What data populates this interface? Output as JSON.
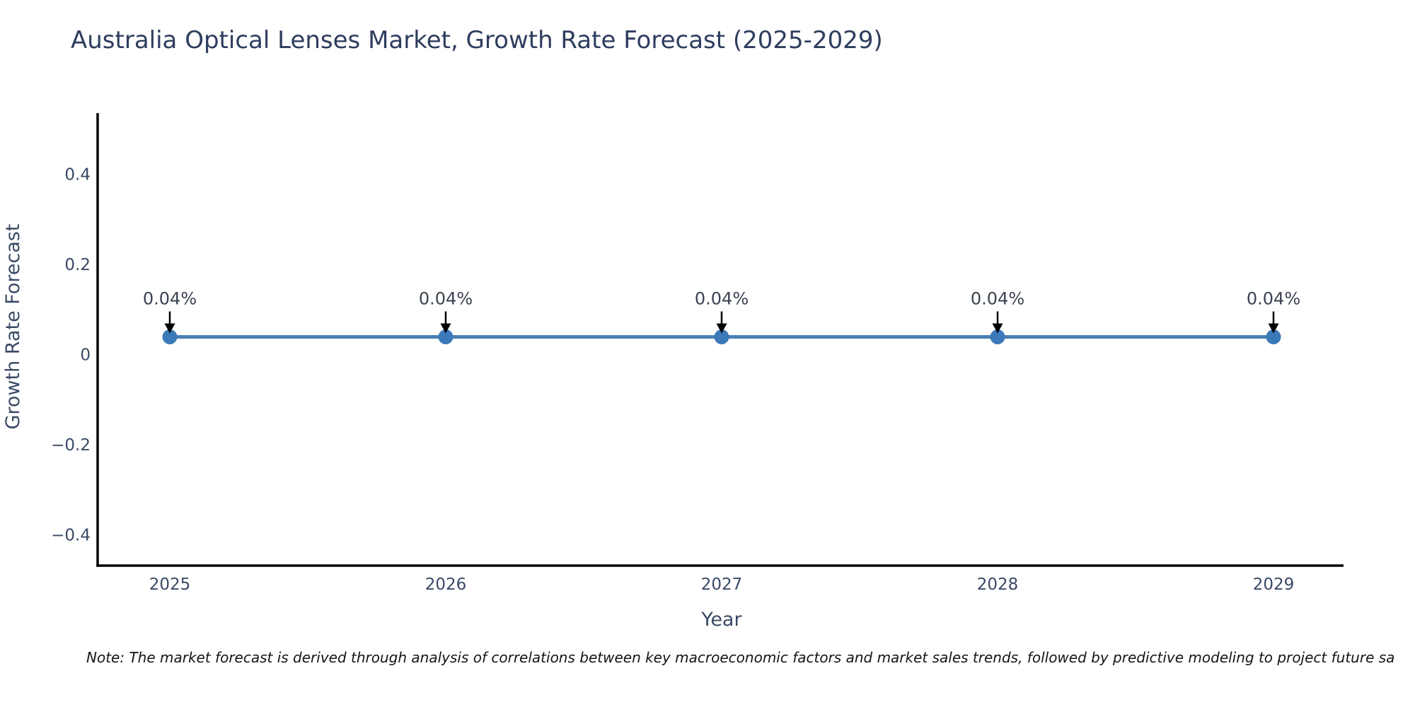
{
  "note": "Note: The market forecast is derived through analysis of correlations between key macroeconomic factors and market sales trends, followed by predictive modeling to project future sa",
  "chart_data": {
    "type": "line",
    "title": "Australia Optical Lenses Market, Growth Rate Forecast (2025-2029)",
    "xlabel": "Year",
    "ylabel": "Growth Rate Forecast",
    "categories": [
      "2025",
      "2026",
      "2027",
      "2028",
      "2029"
    ],
    "values": [
      0.04,
      0.04,
      0.04,
      0.04,
      0.04
    ],
    "point_labels": [
      "0.04%",
      "0.04%",
      "0.04%",
      "0.04%",
      "0.04%"
    ],
    "yticks": [
      0.4,
      0.2,
      0,
      -0.2,
      -0.4
    ],
    "ylim": [
      -0.47,
      0.54
    ],
    "grid": false,
    "legend": "none",
    "marker_style": "circle",
    "annotation_arrows": true,
    "colors": {
      "line": "#4a81b4",
      "marker": "#3c79b8",
      "axis": "#000000",
      "tick_text": "#3a4a66",
      "title_text": "#2e3d5e",
      "annotation_text": "#3a4250",
      "annotation_arrow": "#000000",
      "note_text": "#151515",
      "background": "#ffffff"
    }
  }
}
